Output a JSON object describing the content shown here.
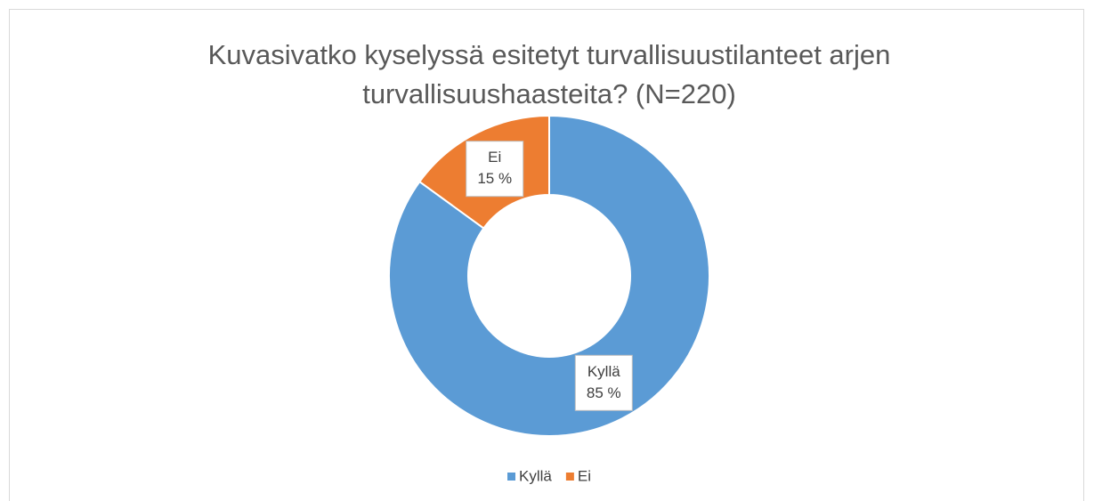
{
  "chart_data": {
    "type": "donut",
    "title": "Kuvasivatko kyselyssä esitetyt turvallisuustilanteet arjen turvallisuushaasteita? (N=220)",
    "categories": [
      "Kyllä",
      "Ei"
    ],
    "values": [
      85,
      15
    ],
    "value_labels": [
      "85 %",
      "15 %"
    ],
    "colors": [
      "#5b9bd5",
      "#ed7d31"
    ],
    "legend": "bottom"
  }
}
